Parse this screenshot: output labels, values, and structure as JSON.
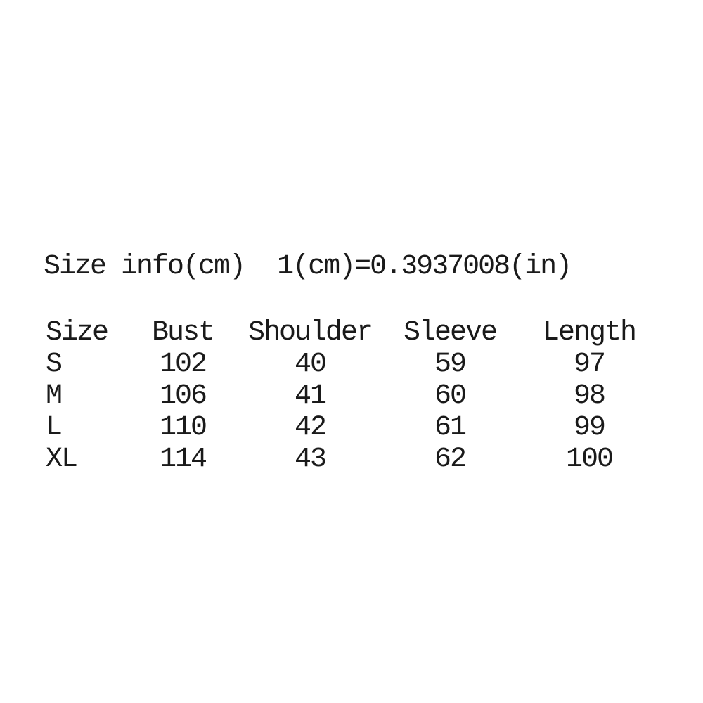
{
  "colors": {
    "background": "#ffffff",
    "text": "#1a1a1a"
  },
  "title": {
    "heading": "Size info(cm)",
    "conversion": "1(cm)=0.3937008(in)"
  },
  "table": {
    "columns": [
      "Size",
      "Bust",
      "Shoulder",
      "Sleeve",
      "Length"
    ],
    "rows": [
      {
        "cells": [
          "S",
          "102",
          "40",
          "59",
          "97"
        ]
      },
      {
        "cells": [
          "M",
          "106",
          "41",
          "60",
          "98"
        ]
      },
      {
        "cells": [
          "L",
          "110",
          "42",
          "61",
          "99"
        ]
      },
      {
        "cells": [
          "XL",
          "114",
          "43",
          "62",
          "100"
        ]
      }
    ]
  },
  "chart_data": {
    "type": "table",
    "title": "Size info(cm)",
    "note": "1(cm)=0.3937008(in)",
    "unit": "cm",
    "columns": [
      "Size",
      "Bust",
      "Shoulder",
      "Sleeve",
      "Length"
    ],
    "rows": [
      [
        "S",
        102,
        40,
        59,
        97
      ],
      [
        "M",
        106,
        41,
        60,
        98
      ],
      [
        "L",
        110,
        42,
        61,
        99
      ],
      [
        "XL",
        114,
        43,
        62,
        100
      ]
    ]
  }
}
